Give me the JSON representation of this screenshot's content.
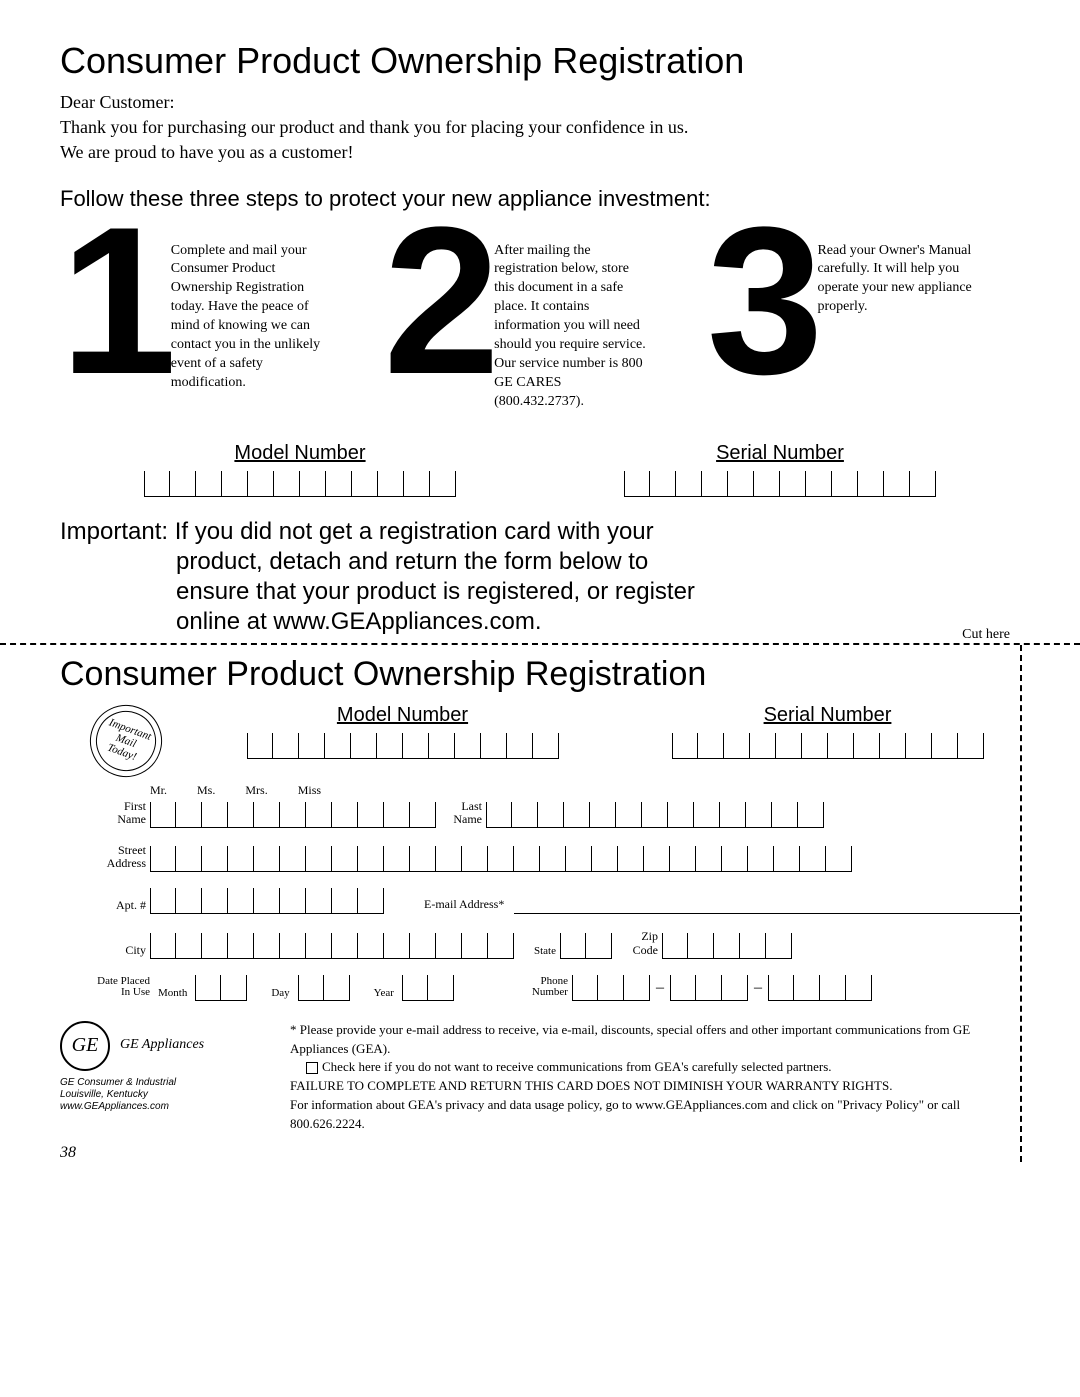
{
  "title": "Consumer Product Ownership Registration",
  "greeting": "Dear Customer:",
  "thanks_line1": "Thank you for purchasing our product and thank you for placing your confidence in us.",
  "thanks_line2": "We are proud to have you as a customer!",
  "follow_steps": "Follow these three steps to protect your new appliance investment:",
  "steps": {
    "one": {
      "num": "1",
      "text": "Complete and mail your Consumer Product Ownership Registration today. Have the peace of mind of knowing we can contact you in the unlikely event of a safety modification."
    },
    "two": {
      "num": "2",
      "text": "After mailing the registration below, store this document in a safe place. It contains information you will need should you require service. Our service number is 800 GE CARES (800.432.2737)."
    },
    "three": {
      "num": "3",
      "text": "Read your Owner's Manual carefully. It will help you operate your new appliance properly."
    }
  },
  "model_label": "Model Number",
  "serial_label": "Serial Number",
  "model_boxes": 12,
  "serial_boxes": 12,
  "important_lead": "Important:",
  "important_l1": "If you did not get a registration card with your",
  "important_l2": "product, detach and return the form below to",
  "important_l3": "ensure that your product is registered, or register",
  "important_l4": "online at www.GEAppliances.com.",
  "cut_here": "Cut here",
  "title2": "Consumer Product Ownership Registration",
  "stamp_l1": "Important",
  "stamp_l2": "Mail",
  "stamp_l3": "Today!",
  "form": {
    "model_boxes": 12,
    "serial_boxes": 12,
    "titles": {
      "mr": "Mr.",
      "ms": "Ms.",
      "mrs": "Mrs.",
      "miss": "Miss"
    },
    "first_name": "First\nName",
    "last_name": "Last\nName",
    "first_boxes": 11,
    "last_boxes": 13,
    "street": "Street\nAddress",
    "street_boxes": 27,
    "apt": "Apt. #",
    "apt_boxes": 9,
    "email": "E-mail Address*",
    "city": "City",
    "city_boxes": 14,
    "state": "State",
    "state_boxes": 2,
    "zip": "Zip\nCode",
    "zip_boxes": 5,
    "date_placed": "Date Placed\nIn Use",
    "month": "Month",
    "month_boxes": 2,
    "day": "Day",
    "day_boxes": 2,
    "year": "Year",
    "year_boxes": 2,
    "phone": "Phone\nNumber",
    "phone1": 3,
    "phone2": 3,
    "phone3": 4
  },
  "footer": {
    "brand": "GE Appliances",
    "addr1": "GE Consumer & Industrial",
    "addr2": "Louisville, Kentucky",
    "addr3": "www.GEAppliances.com",
    "disc1": "* Please provide your e-mail address to receive, via e-mail, discounts, special offers and other important communications from GE Appliances (GEA).",
    "disc2": "Check here if you do not want to receive communications from GEA's carefully selected partners.",
    "disc3": "FAILURE TO COMPLETE AND RETURN THIS CARD DOES NOT DIMINISH YOUR WARRANTY RIGHTS.",
    "disc4": "For information about GEA's privacy and data usage policy, go to www.GEAppliances.com and click on \"Privacy Policy\" or call 800.626.2224."
  },
  "page_number": "38"
}
